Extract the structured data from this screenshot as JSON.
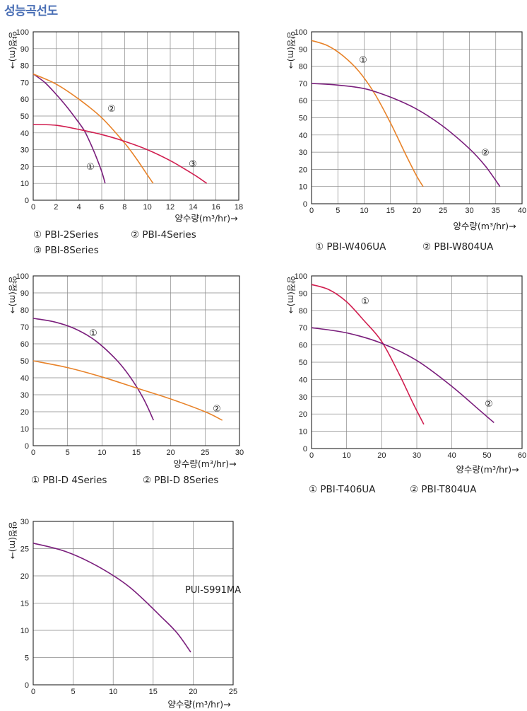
{
  "page_title": "성능곡선도",
  "colors": {
    "orange": "#e8832a",
    "purple": "#7a1e7c",
    "crimson": "#d11f50",
    "grid": "#888888"
  },
  "chart_data": [
    {
      "type": "line",
      "xlabel": "양수량(m³/hr)→",
      "ylabel": "양정(m)→",
      "xlim": [
        0,
        18
      ],
      "ylim": [
        0,
        100
      ],
      "xticks": [
        0,
        2,
        4,
        6,
        8,
        10,
        12,
        14,
        16,
        18
      ],
      "yticks": [
        0,
        10,
        20,
        30,
        40,
        50,
        60,
        70,
        80,
        90,
        100
      ],
      "grid": true,
      "series": [
        {
          "name": "① PBI-2Series",
          "marker": "①",
          "color": "purple",
          "x": [
            0,
            1,
            2,
            3,
            4,
            4.5,
            5,
            5.5,
            6,
            6.3
          ],
          "y": [
            75,
            70,
            63,
            55,
            46,
            41,
            34,
            26,
            17,
            10
          ]
        },
        {
          "name": "② PBI-4Series",
          "marker": "②",
          "color": "orange",
          "x": [
            0,
            2,
            4,
            6,
            8,
            9,
            10,
            10.5
          ],
          "y": [
            75,
            69,
            60,
            49,
            34,
            25,
            15,
            10
          ]
        },
        {
          "name": "③ PBI-8Series",
          "marker": "③",
          "color": "crimson",
          "x": [
            0,
            2,
            4,
            6,
            8,
            10,
            12,
            14,
            15.2
          ],
          "y": [
            45,
            44.5,
            42,
            39,
            35,
            30,
            23.5,
            15.5,
            10
          ]
        }
      ]
    },
    {
      "type": "line",
      "xlabel": "양수량(m³/hr)→",
      "ylabel": "양정(m)→",
      "xlim": [
        0,
        40
      ],
      "ylim": [
        0,
        100
      ],
      "xticks": [
        0,
        5,
        10,
        15,
        20,
        25,
        30,
        35,
        40
      ],
      "yticks": [
        0,
        10,
        20,
        30,
        40,
        50,
        60,
        70,
        80,
        90,
        100
      ],
      "grid": true,
      "series": [
        {
          "name": "① PBI-W406UA",
          "marker": "①",
          "color": "orange",
          "x": [
            0,
            3,
            6,
            9,
            12,
            15,
            18,
            20,
            21.2
          ],
          "y": [
            95,
            92,
            86,
            77,
            64,
            47,
            28,
            16,
            10
          ]
        },
        {
          "name": "② PBI-W804UA",
          "marker": "②",
          "color": "purple",
          "x": [
            0,
            5,
            10,
            15,
            20,
            25,
            30,
            33,
            35.8
          ],
          "y": [
            70,
            69,
            67,
            62,
            55,
            45,
            32,
            22,
            10
          ]
        }
      ]
    },
    {
      "type": "line",
      "xlabel": "양수량(m³/hr)→",
      "ylabel": "양정(m)→",
      "xlim": [
        0,
        30
      ],
      "ylim": [
        0,
        100
      ],
      "xticks": [
        0,
        5,
        10,
        15,
        20,
        25,
        30
      ],
      "yticks": [
        0,
        10,
        20,
        30,
        40,
        50,
        60,
        70,
        80,
        90,
        100
      ],
      "grid": true,
      "series": [
        {
          "name": "① PBI-D 4Series",
          "marker": "①",
          "color": "purple",
          "x": [
            0,
            3,
            6,
            9,
            12,
            14,
            16,
            17.5
          ],
          "y": [
            75,
            73,
            69,
            62,
            51,
            41,
            28,
            15
          ]
        },
        {
          "name": "② PBI-D 8Series",
          "marker": "②",
          "color": "orange",
          "x": [
            0,
            5,
            10,
            15,
            20,
            25,
            27.5
          ],
          "y": [
            50,
            46,
            40.5,
            34,
            27.5,
            20,
            15
          ]
        }
      ]
    },
    {
      "type": "line",
      "xlabel": "양수량(m³/hr)→",
      "ylabel": "양정(m)→",
      "xlim": [
        0,
        60
      ],
      "ylim": [
        0,
        100
      ],
      "xticks": [
        0,
        10,
        20,
        30,
        40,
        50,
        60
      ],
      "yticks": [
        0,
        10,
        20,
        30,
        40,
        50,
        60,
        70,
        80,
        90,
        100
      ],
      "grid": true,
      "series": [
        {
          "name": "① PBI-T406UA",
          "marker": "①",
          "color": "crimson",
          "x": [
            0,
            5,
            10,
            15,
            20,
            25,
            29,
            32
          ],
          "y": [
            95,
            92,
            85,
            74,
            62,
            43,
            26,
            14
          ]
        },
        {
          "name": "② PBI-T804UA",
          "marker": "②",
          "color": "purple",
          "x": [
            0,
            10,
            20,
            30,
            40,
            48,
            52
          ],
          "y": [
            70,
            67,
            61,
            51,
            36,
            22,
            15
          ]
        }
      ]
    },
    {
      "type": "line",
      "xlabel": "양수량(m³/hr)→",
      "ylabel": "양정(m)→",
      "xlim": [
        0,
        25
      ],
      "ylim": [
        0,
        30
      ],
      "xticks": [
        0,
        5,
        10,
        15,
        20,
        25
      ],
      "yticks": [
        0,
        5,
        10,
        15,
        20,
        25,
        30
      ],
      "grid": true,
      "series": [
        {
          "name": "PUI-S991MA",
          "marker": "",
          "color": "purple",
          "x": [
            0,
            4,
            8,
            12,
            16,
            18,
            19.7
          ],
          "y": [
            26,
            24.5,
            21.8,
            18,
            12.5,
            9.5,
            6
          ]
        }
      ]
    }
  ],
  "legends": [
    [
      "① PBI-2Series",
      "② PBI-4Series",
      "③ PBI-8Series"
    ],
    [
      "① PBI-W406UA",
      "② PBI-W804UA"
    ],
    [
      "① PBI-D 4Series",
      "② PBI-D 8Series"
    ],
    [
      "① PBI-T406UA",
      "② PBI-T804UA"
    ],
    []
  ]
}
